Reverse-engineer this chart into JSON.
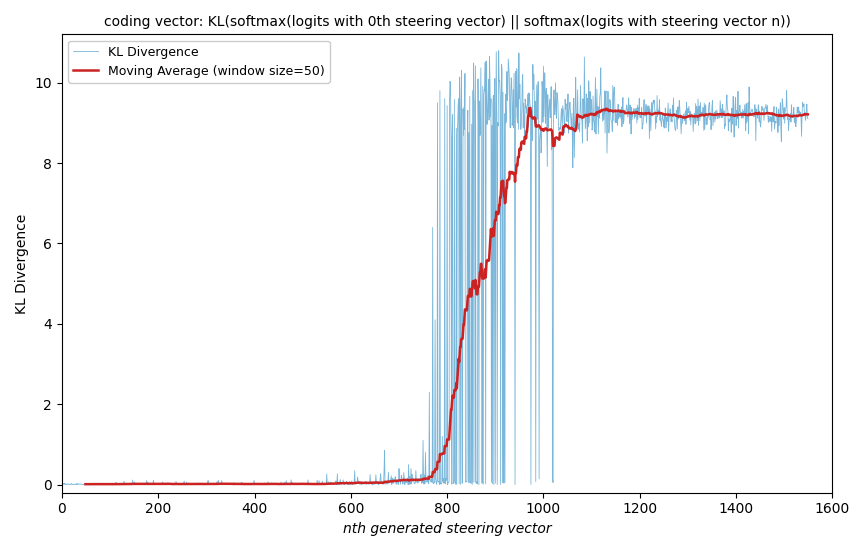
{
  "title": "coding vector: KL(softmax(logits with 0th steering vector) || softmax(logits with steering vector n))",
  "xlabel": "nth generated steering vector",
  "ylabel": "KL Divergence",
  "xlim": [
    0,
    1600
  ],
  "ylim": [
    -0.2,
    11.2
  ],
  "kl_color": "#6aaed6",
  "ma_color": "#cc2222",
  "legend_kl": "KL Divergence",
  "legend_ma": "Moving Average (window size=50)",
  "window_size": 50,
  "n_points": 1550,
  "seed": 42,
  "title_fontsize": 10,
  "axis_fontsize": 10,
  "legend_fontsize": 9
}
